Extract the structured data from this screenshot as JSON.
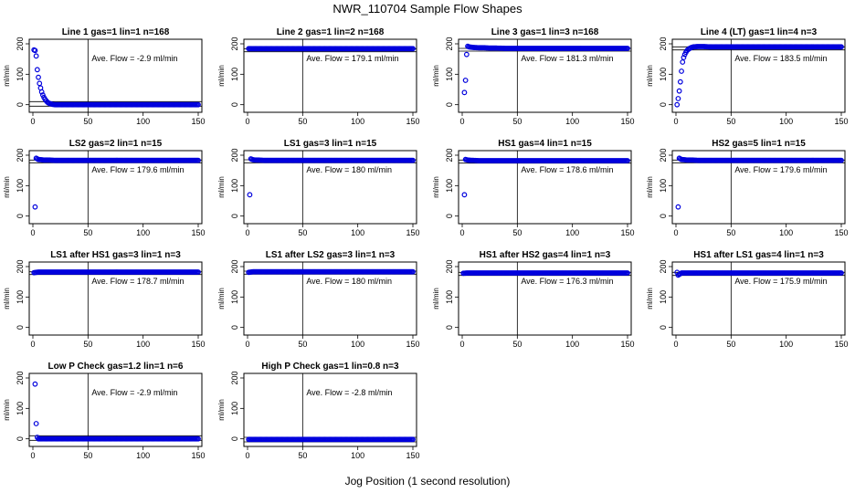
{
  "figure": {
    "title": "NWR_110704  Sample Flow Shapes",
    "xlabel": "Jog Position (1 second resolution)"
  },
  "colors": {
    "points": "#0000dd",
    "axis": "#000000"
  },
  "chart_data": [
    {
      "type": "scatter",
      "title": "Line 1 gas=1 lin=1 n=168",
      "ylabel": "ml/min",
      "annotation": "Ave. Flow =  -2.9  ml/min",
      "xlim": [
        0,
        150
      ],
      "ylim": [
        -25,
        215
      ],
      "xticks": [
        0,
        50,
        100,
        150
      ],
      "yticks": [
        0,
        100,
        200
      ],
      "hlines": [
        10,
        -5
      ],
      "vline": 50,
      "x": [
        1,
        2,
        3,
        4,
        5,
        6,
        7,
        8,
        9,
        10,
        11,
        12,
        13,
        14,
        15,
        16,
        17,
        18,
        20,
        25,
        30,
        40,
        50,
        60,
        70,
        80,
        90,
        100,
        110,
        120,
        130,
        140,
        150
      ],
      "y": [
        180,
        178,
        160,
        115,
        90,
        70,
        55,
        42,
        32,
        24,
        18,
        13,
        9,
        6,
        4,
        3,
        2,
        1,
        0,
        0,
        0,
        0,
        0,
        0,
        0,
        0,
        0,
        0,
        0,
        0,
        0,
        0,
        0
      ]
    },
    {
      "type": "scatter",
      "title": "Line 2 gas=1 lin=2 n=168",
      "ylabel": "ml/min",
      "annotation": "Ave. Flow =  179.1  ml/min",
      "xlim": [
        0,
        150
      ],
      "ylim": [
        -25,
        215
      ],
      "xticks": [
        0,
        50,
        100,
        150
      ],
      "yticks": [
        0,
        100,
        200
      ],
      "hlines": [
        184,
        174
      ],
      "vline": 50,
      "x": [
        1,
        5,
        10,
        15,
        20,
        25,
        30,
        35,
        40,
        45,
        50,
        55,
        60,
        65,
        70,
        75,
        80,
        85,
        90,
        95,
        100,
        105,
        110,
        115,
        120,
        125,
        130,
        135,
        140,
        145,
        150
      ],
      "y": [
        184,
        184,
        184,
        184,
        184,
        184,
        184,
        184,
        184,
        184,
        184,
        184,
        184,
        184,
        184,
        184,
        184,
        184,
        184,
        184,
        184,
        184,
        184,
        184,
        184,
        184,
        184,
        184,
        184,
        184,
        184
      ]
    },
    {
      "type": "scatter",
      "title": "Line 3 gas=1 lin=3 n=168",
      "ylabel": "ml/min",
      "annotation": "Ave. Flow =  181.3  ml/min",
      "xlim": [
        0,
        150
      ],
      "ylim": [
        -25,
        215
      ],
      "xticks": [
        0,
        50,
        100,
        150
      ],
      "yticks": [
        0,
        100,
        200
      ],
      "hlines": [
        185,
        176
      ],
      "vline": 50,
      "x": [
        2,
        3,
        4,
        5,
        6,
        8,
        10,
        15,
        20,
        25,
        30,
        40,
        50,
        60,
        70,
        80,
        90,
        100,
        110,
        120,
        130,
        140,
        150
      ],
      "y": [
        40,
        80,
        165,
        192,
        190,
        189,
        188,
        187,
        187,
        186,
        186,
        185,
        185,
        185,
        185,
        185,
        185,
        185,
        185,
        185,
        185,
        185,
        185
      ]
    },
    {
      "type": "scatter",
      "title": "Line 4 (LT) gas=1 lin=4 n=3",
      "ylabel": "ml/min",
      "annotation": "Ave. Flow =  183.5  ml/min",
      "xlim": [
        0,
        150
      ],
      "ylim": [
        -25,
        215
      ],
      "xticks": [
        0,
        50,
        100,
        150
      ],
      "yticks": [
        0,
        100,
        200
      ],
      "hlines": [
        190,
        180
      ],
      "vline": 50,
      "x": [
        1,
        2,
        3,
        4,
        5,
        6,
        7,
        8,
        9,
        10,
        12,
        14,
        16,
        20,
        25,
        30,
        40,
        50,
        60,
        70,
        80,
        90,
        100,
        110,
        120,
        130,
        140,
        150
      ],
      "y": [
        0,
        20,
        45,
        75,
        110,
        140,
        155,
        165,
        172,
        178,
        184,
        188,
        190,
        191,
        191,
        190,
        190,
        190,
        190,
        190,
        190,
        190,
        190,
        190,
        190,
        190,
        190,
        190
      ]
    },
    {
      "type": "scatter",
      "title": "LS2 gas=2 lin=1 n=15",
      "ylabel": "ml/min",
      "annotation": "Ave. Flow =  179.6  ml/min",
      "xlim": [
        0,
        150
      ],
      "ylim": [
        -25,
        215
      ],
      "xticks": [
        0,
        50,
        100,
        150
      ],
      "yticks": [
        0,
        100,
        200
      ],
      "hlines": [
        184,
        175
      ],
      "vline": 50,
      "x": [
        2,
        3,
        5,
        8,
        10,
        15,
        20,
        30,
        40,
        50,
        60,
        70,
        80,
        90,
        100,
        110,
        120,
        130,
        140,
        150
      ],
      "y": [
        30,
        190,
        186,
        185,
        184,
        184,
        183,
        183,
        183,
        183,
        183,
        183,
        183,
        183,
        183,
        183,
        183,
        183,
        183,
        183
      ]
    },
    {
      "type": "scatter",
      "title": "LS1 gas=3 lin=1 n=15",
      "ylabel": "ml/min",
      "annotation": "Ave. Flow =  180  ml/min",
      "xlim": [
        0,
        150
      ],
      "ylim": [
        -25,
        215
      ],
      "xticks": [
        0,
        50,
        100,
        150
      ],
      "yticks": [
        0,
        100,
        200
      ],
      "hlines": [
        185,
        175
      ],
      "vline": 50,
      "x": [
        2,
        3,
        5,
        8,
        10,
        15,
        20,
        30,
        40,
        50,
        60,
        70,
        80,
        90,
        100,
        110,
        120,
        130,
        140,
        150
      ],
      "y": [
        70,
        188,
        185,
        184,
        184,
        183,
        183,
        183,
        183,
        183,
        183,
        183,
        183,
        183,
        183,
        183,
        183,
        183,
        183,
        183
      ]
    },
    {
      "type": "scatter",
      "title": "HS1 gas=4 lin=1 n=15",
      "ylabel": "ml/min",
      "annotation": "Ave. Flow =  178.6  ml/min",
      "xlim": [
        0,
        150
      ],
      "ylim": [
        -25,
        215
      ],
      "xticks": [
        0,
        50,
        100,
        150
      ],
      "yticks": [
        0,
        100,
        200
      ],
      "hlines": [
        184,
        174
      ],
      "vline": 50,
      "x": [
        2,
        3,
        5,
        8,
        10,
        15,
        20,
        30,
        40,
        50,
        60,
        70,
        80,
        90,
        100,
        110,
        120,
        130,
        140,
        150
      ],
      "y": [
        70,
        186,
        184,
        183,
        183,
        182,
        182,
        182,
        182,
        182,
        182,
        182,
        182,
        182,
        182,
        182,
        182,
        182,
        182,
        182
      ]
    },
    {
      "type": "scatter",
      "title": "HS2 gas=5 lin=1 n=15",
      "ylabel": "ml/min",
      "annotation": "Ave. Flow =  179.6  ml/min",
      "xlim": [
        0,
        150
      ],
      "ylim": [
        -25,
        215
      ],
      "xticks": [
        0,
        50,
        100,
        150
      ],
      "yticks": [
        0,
        100,
        200
      ],
      "hlines": [
        184,
        175
      ],
      "vline": 50,
      "x": [
        2,
        3,
        5,
        8,
        10,
        15,
        20,
        30,
        40,
        50,
        60,
        70,
        80,
        90,
        100,
        110,
        120,
        130,
        140,
        150
      ],
      "y": [
        30,
        190,
        186,
        185,
        184,
        184,
        183,
        183,
        183,
        183,
        183,
        183,
        183,
        183,
        183,
        183,
        183,
        183,
        183,
        183
      ]
    },
    {
      "type": "scatter",
      "title": "LS1 after HS1 gas=3 lin=1 n=3",
      "ylabel": "ml/min",
      "annotation": "Ave. Flow =  178.7  ml/min",
      "xlim": [
        0,
        150
      ],
      "ylim": [
        -25,
        215
      ],
      "xticks": [
        0,
        50,
        100,
        150
      ],
      "yticks": [
        0,
        100,
        200
      ],
      "hlines": [
        183,
        174
      ],
      "vline": 50,
      "x": [
        1,
        5,
        10,
        15,
        20,
        25,
        30,
        40,
        50,
        60,
        70,
        80,
        90,
        100,
        110,
        120,
        130,
        140,
        150
      ],
      "y": [
        180,
        182,
        182,
        182,
        182,
        182,
        182,
        182,
        182,
        182,
        182,
        182,
        182,
        182,
        182,
        182,
        182,
        182,
        182
      ]
    },
    {
      "type": "scatter",
      "title": "LS1 after LS2 gas=3 lin=1 n=3",
      "ylabel": "ml/min",
      "annotation": "Ave. Flow =  180  ml/min",
      "xlim": [
        0,
        150
      ],
      "ylim": [
        -25,
        215
      ],
      "xticks": [
        0,
        50,
        100,
        150
      ],
      "yticks": [
        0,
        100,
        200
      ],
      "hlines": [
        185,
        175
      ],
      "vline": 50,
      "x": [
        1,
        5,
        10,
        15,
        20,
        25,
        30,
        40,
        50,
        60,
        70,
        80,
        90,
        100,
        110,
        120,
        130,
        140,
        150
      ],
      "y": [
        181,
        183,
        183,
        183,
        183,
        183,
        183,
        183,
        183,
        183,
        183,
        183,
        183,
        183,
        183,
        183,
        183,
        183,
        183
      ]
    },
    {
      "type": "scatter",
      "title": "HS1 after HS2 gas=4 lin=1 n=3",
      "ylabel": "ml/min",
      "annotation": "Ave. Flow =  176.3  ml/min",
      "xlim": [
        0,
        150
      ],
      "ylim": [
        -25,
        215
      ],
      "xticks": [
        0,
        50,
        100,
        150
      ],
      "yticks": [
        0,
        100,
        200
      ],
      "hlines": [
        181,
        171
      ],
      "vline": 50,
      "x": [
        1,
        5,
        10,
        15,
        20,
        25,
        30,
        40,
        50,
        60,
        70,
        80,
        90,
        100,
        110,
        120,
        130,
        140,
        150
      ],
      "y": [
        178,
        179,
        179,
        179,
        179,
        179,
        179,
        179,
        179,
        179,
        179,
        179,
        179,
        179,
        179,
        179,
        179,
        179,
        179
      ]
    },
    {
      "type": "scatter",
      "title": "HS1 after LS1 gas=4 lin=1 n=3",
      "ylabel": "ml/min",
      "annotation": "Ave. Flow =  175.9  ml/min",
      "xlim": [
        0,
        150
      ],
      "ylim": [
        -25,
        215
      ],
      "xticks": [
        0,
        50,
        100,
        150
      ],
      "yticks": [
        0,
        100,
        200
      ],
      "hlines": [
        181,
        171
      ],
      "vline": 50,
      "x": [
        1,
        2,
        5,
        10,
        15,
        20,
        25,
        30,
        40,
        50,
        60,
        70,
        80,
        90,
        100,
        110,
        120,
        130,
        140,
        150
      ],
      "y": [
        181,
        172,
        179,
        179,
        179,
        179,
        179,
        179,
        179,
        179,
        179,
        179,
        179,
        179,
        179,
        179,
        179,
        179,
        179,
        179
      ]
    },
    {
      "type": "scatter",
      "title": "Low P Check gas=1.2 lin=1 n=6",
      "ylabel": "ml/min",
      "annotation": "Ave. Flow =  -2.9  ml/min",
      "xlim": [
        0,
        150
      ],
      "ylim": [
        -25,
        215
      ],
      "xticks": [
        0,
        50,
        100,
        150
      ],
      "yticks": [
        0,
        100,
        200
      ],
      "hlines": [
        10,
        -5
      ],
      "vline": 50,
      "x": [
        2,
        3,
        4,
        5,
        10,
        15,
        20,
        30,
        40,
        50,
        60,
        70,
        80,
        90,
        100,
        110,
        120,
        130,
        140,
        150
      ],
      "y": [
        180,
        50,
        5,
        0,
        0,
        0,
        0,
        0,
        0,
        0,
        0,
        0,
        0,
        0,
        0,
        0,
        0,
        0,
        0,
        0
      ]
    },
    {
      "type": "scatter",
      "title": "High P Check gas=1 lin=0.8 n=3",
      "ylabel": "ml/min",
      "annotation": "Ave. Flow =  -2.8  ml/min",
      "xlim": [
        0,
        150
      ],
      "ylim": [
        -25,
        215
      ],
      "xticks": [
        0,
        50,
        100,
        150
      ],
      "yticks": [
        0,
        100,
        200
      ],
      "hlines": [
        5,
        -10
      ],
      "vline": 50,
      "x": [
        1,
        5,
        10,
        15,
        20,
        25,
        30,
        40,
        50,
        60,
        70,
        80,
        90,
        100,
        110,
        120,
        130,
        140,
        150
      ],
      "y": [
        -2,
        -2,
        -2,
        -2,
        -2,
        -2,
        -2,
        -2,
        -2,
        -2,
        -2,
        -2,
        -2,
        -2,
        -2,
        -2,
        -2,
        -2,
        -2
      ]
    }
  ]
}
